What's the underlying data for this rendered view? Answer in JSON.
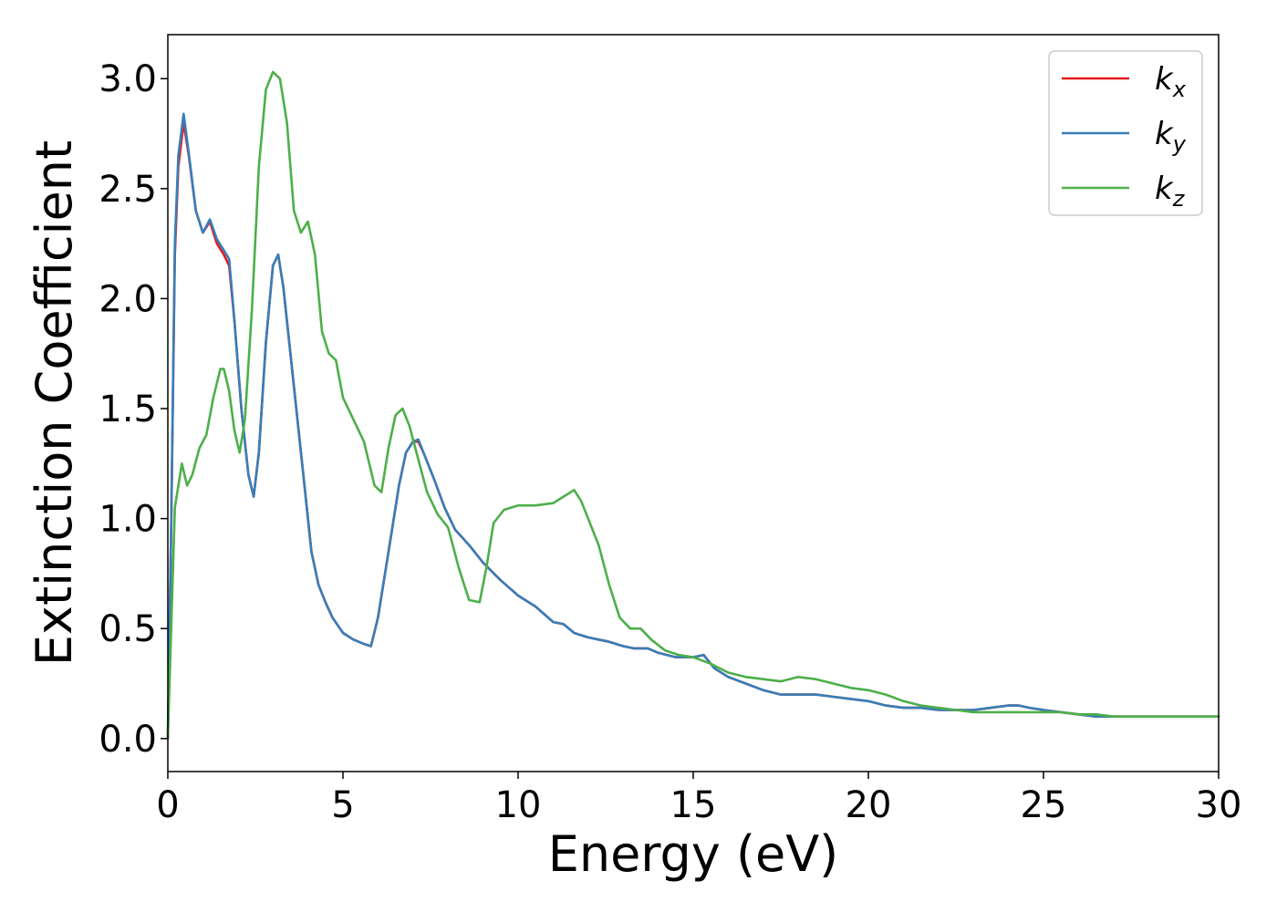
{
  "chart_data": {
    "type": "line",
    "xlabel": "Energy (eV)",
    "ylabel": "Extinction Coefficient",
    "xlim": [
      0,
      30
    ],
    "ylim": [
      -0.15,
      3.2
    ],
    "xticks": [
      0,
      5,
      10,
      15,
      20,
      25,
      30
    ],
    "yticks": [
      0.0,
      0.5,
      1.0,
      1.5,
      2.0,
      2.5,
      3.0
    ],
    "xtick_labels": [
      "0",
      "5",
      "10",
      "15",
      "20",
      "25",
      "30"
    ],
    "ytick_labels": [
      "0.0",
      "0.5",
      "1.0",
      "1.5",
      "2.0",
      "2.5",
      "3.0"
    ],
    "grid": false,
    "legend_position": "top-right",
    "series": [
      {
        "name": "k_x",
        "label_base": "k",
        "label_sub": "x",
        "color": "#e41a1c",
        "x": [
          0,
          0.1,
          0.2,
          0.3,
          0.45,
          0.6,
          0.8,
          1.0,
          1.2,
          1.4,
          1.6,
          1.75,
          1.9,
          2.1,
          2.3,
          2.45,
          2.6,
          2.8,
          3.0,
          3.15,
          3.3,
          3.5,
          3.7,
          3.9,
          4.1,
          4.3,
          4.5,
          4.7,
          5.0,
          5.3,
          5.6,
          5.8,
          6.0,
          6.2,
          6.4,
          6.6,
          6.8,
          7.0,
          7.15,
          7.3,
          7.6,
          7.9,
          8.2,
          8.6,
          9.0,
          9.5,
          10.0,
          10.5,
          11.0,
          11.3,
          11.6,
          11.8,
          12.0,
          12.3,
          12.6,
          13.0,
          13.3,
          13.7,
          14.0,
          14.5,
          15.0,
          15.3,
          15.6,
          16.0,
          16.5,
          17.0,
          17.5,
          18.0,
          18.5,
          19.0,
          19.5,
          20.0,
          20.5,
          21.0,
          21.5,
          22.0,
          22.5,
          23.0,
          23.5,
          24.0,
          24.3,
          24.6,
          25.0,
          25.5,
          26.0,
          26.5,
          27.0,
          27.5,
          28.0,
          28.5,
          29.0,
          29.5,
          30.0
        ],
        "values": [
          0.0,
          1.0,
          2.2,
          2.6,
          2.8,
          2.65,
          2.4,
          2.3,
          2.35,
          2.25,
          2.2,
          2.15,
          1.9,
          1.5,
          1.2,
          1.1,
          1.3,
          1.8,
          2.15,
          2.2,
          2.05,
          1.75,
          1.45,
          1.15,
          0.85,
          0.7,
          0.62,
          0.55,
          0.48,
          0.45,
          0.43,
          0.42,
          0.55,
          0.75,
          0.95,
          1.15,
          1.3,
          1.35,
          1.35,
          1.3,
          1.18,
          1.05,
          0.95,
          0.88,
          0.8,
          0.72,
          0.65,
          0.6,
          0.53,
          0.52,
          0.48,
          0.47,
          0.46,
          0.45,
          0.44,
          0.42,
          0.41,
          0.41,
          0.39,
          0.37,
          0.37,
          0.38,
          0.32,
          0.28,
          0.25,
          0.22,
          0.2,
          0.2,
          0.2,
          0.19,
          0.18,
          0.17,
          0.15,
          0.14,
          0.14,
          0.13,
          0.13,
          0.13,
          0.14,
          0.15,
          0.15,
          0.14,
          0.13,
          0.12,
          0.11,
          0.1,
          0.1,
          0.1,
          0.1,
          0.1,
          0.1,
          0.1,
          0.1
        ]
      },
      {
        "name": "k_y",
        "label_base": "k",
        "label_sub": "y",
        "color": "#377eb8",
        "x": [
          0,
          0.1,
          0.2,
          0.3,
          0.45,
          0.6,
          0.8,
          1.0,
          1.2,
          1.4,
          1.6,
          1.75,
          1.9,
          2.1,
          2.3,
          2.45,
          2.6,
          2.8,
          3.0,
          3.15,
          3.3,
          3.5,
          3.7,
          3.9,
          4.1,
          4.3,
          4.5,
          4.7,
          5.0,
          5.3,
          5.6,
          5.8,
          6.0,
          6.2,
          6.4,
          6.6,
          6.8,
          7.0,
          7.15,
          7.3,
          7.6,
          7.9,
          8.2,
          8.6,
          9.0,
          9.5,
          10.0,
          10.5,
          11.0,
          11.3,
          11.6,
          11.8,
          12.0,
          12.3,
          12.6,
          13.0,
          13.3,
          13.7,
          14.0,
          14.5,
          15.0,
          15.3,
          15.6,
          16.0,
          16.5,
          17.0,
          17.5,
          18.0,
          18.5,
          19.0,
          19.5,
          20.0,
          20.5,
          21.0,
          21.5,
          22.0,
          22.5,
          23.0,
          23.5,
          24.0,
          24.3,
          24.6,
          25.0,
          25.5,
          26.0,
          26.5,
          27.0,
          27.5,
          28.0,
          28.5,
          29.0,
          29.5,
          30.0
        ],
        "values": [
          0.0,
          1.0,
          2.25,
          2.65,
          2.84,
          2.66,
          2.4,
          2.3,
          2.36,
          2.27,
          2.22,
          2.18,
          1.9,
          1.5,
          1.2,
          1.1,
          1.3,
          1.8,
          2.15,
          2.2,
          2.05,
          1.75,
          1.45,
          1.15,
          0.85,
          0.7,
          0.62,
          0.55,
          0.48,
          0.45,
          0.43,
          0.42,
          0.55,
          0.75,
          0.95,
          1.15,
          1.3,
          1.35,
          1.36,
          1.3,
          1.18,
          1.05,
          0.95,
          0.88,
          0.8,
          0.72,
          0.65,
          0.6,
          0.53,
          0.52,
          0.48,
          0.47,
          0.46,
          0.45,
          0.44,
          0.42,
          0.41,
          0.41,
          0.39,
          0.37,
          0.37,
          0.38,
          0.32,
          0.28,
          0.25,
          0.22,
          0.2,
          0.2,
          0.2,
          0.19,
          0.18,
          0.17,
          0.15,
          0.14,
          0.14,
          0.13,
          0.13,
          0.13,
          0.14,
          0.15,
          0.15,
          0.14,
          0.13,
          0.12,
          0.11,
          0.1,
          0.1,
          0.1,
          0.1,
          0.1,
          0.1,
          0.1,
          0.1
        ]
      },
      {
        "name": "k_z",
        "label_base": "k",
        "label_sub": "z",
        "color": "#4daf4a",
        "x": [
          0,
          0.2,
          0.4,
          0.55,
          0.7,
          0.9,
          1.1,
          1.3,
          1.5,
          1.6,
          1.75,
          1.9,
          2.05,
          2.2,
          2.4,
          2.6,
          2.8,
          3.0,
          3.2,
          3.4,
          3.6,
          3.8,
          4.0,
          4.2,
          4.4,
          4.6,
          4.8,
          5.0,
          5.3,
          5.6,
          5.9,
          6.1,
          6.3,
          6.5,
          6.7,
          6.9,
          7.1,
          7.4,
          7.7,
          8.0,
          8.3,
          8.6,
          8.9,
          9.1,
          9.3,
          9.6,
          10.0,
          10.5,
          11.0,
          11.3,
          11.6,
          11.8,
          12.0,
          12.3,
          12.6,
          12.9,
          13.2,
          13.5,
          13.8,
          14.2,
          14.6,
          15.0,
          15.5,
          16.0,
          16.5,
          17.0,
          17.5,
          18.0,
          18.5,
          19.0,
          19.5,
          20.0,
          20.5,
          21.0,
          21.5,
          22.0,
          22.5,
          23.0,
          23.5,
          24.0,
          24.5,
          25.0,
          25.5,
          26.0,
          26.5,
          27.0,
          27.5,
          28.0,
          28.5,
          29.0,
          29.5,
          30.0
        ],
        "values": [
          0.0,
          1.05,
          1.25,
          1.15,
          1.2,
          1.32,
          1.38,
          1.55,
          1.68,
          1.68,
          1.58,
          1.4,
          1.3,
          1.45,
          1.95,
          2.6,
          2.95,
          3.03,
          3.0,
          2.8,
          2.4,
          2.3,
          2.35,
          2.2,
          1.85,
          1.75,
          1.72,
          1.55,
          1.45,
          1.35,
          1.15,
          1.12,
          1.32,
          1.47,
          1.5,
          1.42,
          1.3,
          1.12,
          1.02,
          0.96,
          0.78,
          0.63,
          0.62,
          0.78,
          0.98,
          1.04,
          1.06,
          1.06,
          1.07,
          1.1,
          1.13,
          1.08,
          1.0,
          0.88,
          0.7,
          0.55,
          0.5,
          0.5,
          0.45,
          0.4,
          0.38,
          0.37,
          0.34,
          0.3,
          0.28,
          0.27,
          0.26,
          0.28,
          0.27,
          0.25,
          0.23,
          0.22,
          0.2,
          0.17,
          0.15,
          0.14,
          0.13,
          0.12,
          0.12,
          0.12,
          0.12,
          0.12,
          0.12,
          0.11,
          0.11,
          0.1,
          0.1,
          0.1,
          0.1,
          0.1,
          0.1,
          0.1
        ]
      }
    ]
  }
}
